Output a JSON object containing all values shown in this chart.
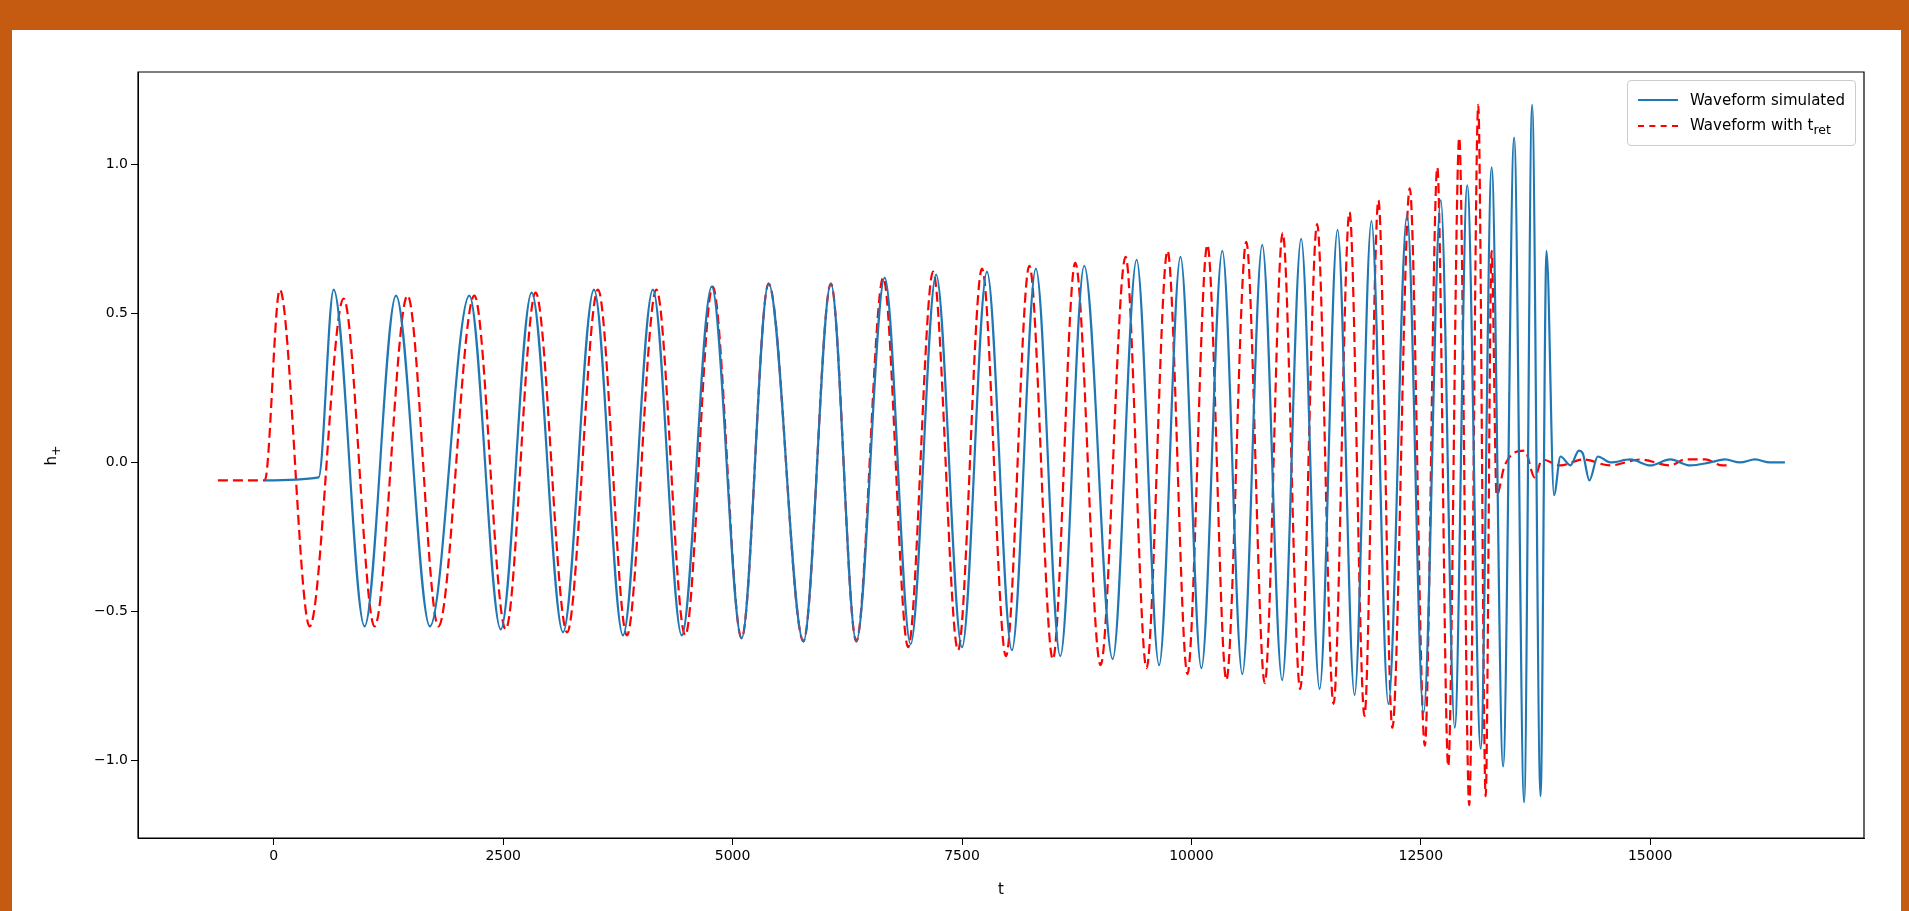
{
  "chart_data": {
    "type": "line",
    "xlabel": "t",
    "ylabel": "h$_{+}$",
    "xlim": [
      -1480,
      17330
    ],
    "ylim": [
      -1.26,
      1.31
    ],
    "xticks": [
      0,
      2500,
      5000,
      7500,
      10000,
      12500,
      15000
    ],
    "yticks": [
      {
        "value": -1,
        "label": "−1.0"
      },
      {
        "value": -0.5,
        "label": "−0.5"
      },
      {
        "value": 0,
        "label": "0.0"
      },
      {
        "value": 0.5,
        "label": "0.5"
      },
      {
        "value": 1,
        "label": "1.0"
      }
    ],
    "legend": "top right",
    "marker": "none",
    "series": [
      {
        "name": "Waveform simulated",
        "color": "#1f77b4",
        "line_style": "solid",
        "x": [
          -100,
          489,
          652,
          989,
          1332,
          1701,
          2131,
          2473,
          2810,
          3152,
          3489,
          3805,
          4131,
          4446,
          4772,
          5098,
          5392,
          5772,
          6071,
          6348,
          6658,
          6940,
          7218,
          7500,
          7772,
          8044,
          8305,
          8571,
          8832,
          9142,
          9403,
          9648,
          9881,
          10109,
          10337,
          10555,
          10772,
          10989,
          11196,
          11397,
          11593,
          11778,
          11962,
          12147,
          12350,
          12530,
          12718,
          12870,
          13006,
          13153,
          13272,
          13397,
          13517,
          13626,
          13713,
          13805,
          13870,
          13952,
          14022,
          14131,
          14223,
          14266,
          14337,
          14429,
          14566,
          14783,
          15001,
          15218,
          15435,
          15653,
          15815,
          15979,
          16142,
          16305,
          16468
        ],
        "values": [
          -0.06,
          -0.05,
          0.58,
          -0.55,
          0.56,
          -0.55,
          0.56,
          -0.56,
          0.57,
          -0.57,
          0.58,
          -0.58,
          0.58,
          -0.58,
          0.59,
          -0.59,
          0.6,
          -0.6,
          0.6,
          -0.6,
          0.62,
          -0.61,
          0.63,
          -0.62,
          0.64,
          -0.63,
          0.65,
          -0.65,
          0.66,
          -0.66,
          0.68,
          -0.68,
          0.69,
          -0.69,
          0.71,
          -0.71,
          0.73,
          -0.73,
          0.75,
          -0.76,
          0.78,
          -0.78,
          0.81,
          -0.81,
          0.83,
          -0.84,
          0.88,
          -0.89,
          0.93,
          -0.96,
          0.99,
          -1.02,
          1.09,
          -1.14,
          1.2,
          -1.12,
          0.71,
          -0.11,
          0.02,
          -0.01,
          0.04,
          0.03,
          -0.06,
          0.02,
          0,
          0.01,
          -0.01,
          0.01,
          -0.01,
          0,
          0.01,
          0,
          0.01,
          0,
          0
        ]
      },
      {
        "name": "Waveform with t$_{ret}$",
        "color": "#ff0000",
        "line_style": "dashed",
        "x": [
          -609,
          -98,
          65,
          391,
          761,
          1098,
          1457,
          1794,
          2185,
          2527,
          2853,
          3196,
          3533,
          3848,
          4169,
          4484,
          4783,
          5098,
          5392,
          5772,
          6071,
          6348,
          6642,
          6913,
          7185,
          7457,
          7718,
          7979,
          8234,
          8490,
          8734,
          9010,
          9283,
          9511,
          9740,
          9957,
          10174,
          10381,
          10598,
          10799,
          10995,
          11185,
          11370,
          11549,
          11723,
          11886,
          12038,
          12190,
          12380,
          12544,
          12680,
          12799,
          12919,
          13028,
          13126,
          13207,
          13272,
          13326,
          13414,
          13632,
          13741,
          13823,
          14022,
          14266,
          14566,
          14892,
          15218,
          15381,
          15598,
          15788,
          15843
        ],
        "values": [
          -0.06,
          -0.06,
          0.58,
          -0.55,
          0.55,
          -0.55,
          0.56,
          -0.55,
          0.56,
          -0.56,
          0.57,
          -0.57,
          0.58,
          -0.58,
          0.58,
          -0.58,
          0.59,
          -0.59,
          0.6,
          -0.6,
          0.6,
          -0.6,
          0.62,
          -0.62,
          0.64,
          -0.63,
          0.65,
          -0.65,
          0.66,
          -0.66,
          0.67,
          -0.68,
          0.69,
          -0.69,
          0.71,
          -0.71,
          0.73,
          -0.73,
          0.74,
          -0.74,
          0.77,
          -0.76,
          0.8,
          -0.81,
          0.84,
          -0.85,
          0.88,
          -0.89,
          0.92,
          -0.95,
          0.99,
          -1.02,
          1.09,
          -1.15,
          1.2,
          -1.12,
          0.71,
          -0.11,
          -0.01,
          0.04,
          -0.05,
          0.01,
          -0.01,
          0.01,
          -0.01,
          0.01,
          -0.01,
          0.01,
          0.01,
          -0.01,
          -0.01
        ]
      }
    ]
  }
}
